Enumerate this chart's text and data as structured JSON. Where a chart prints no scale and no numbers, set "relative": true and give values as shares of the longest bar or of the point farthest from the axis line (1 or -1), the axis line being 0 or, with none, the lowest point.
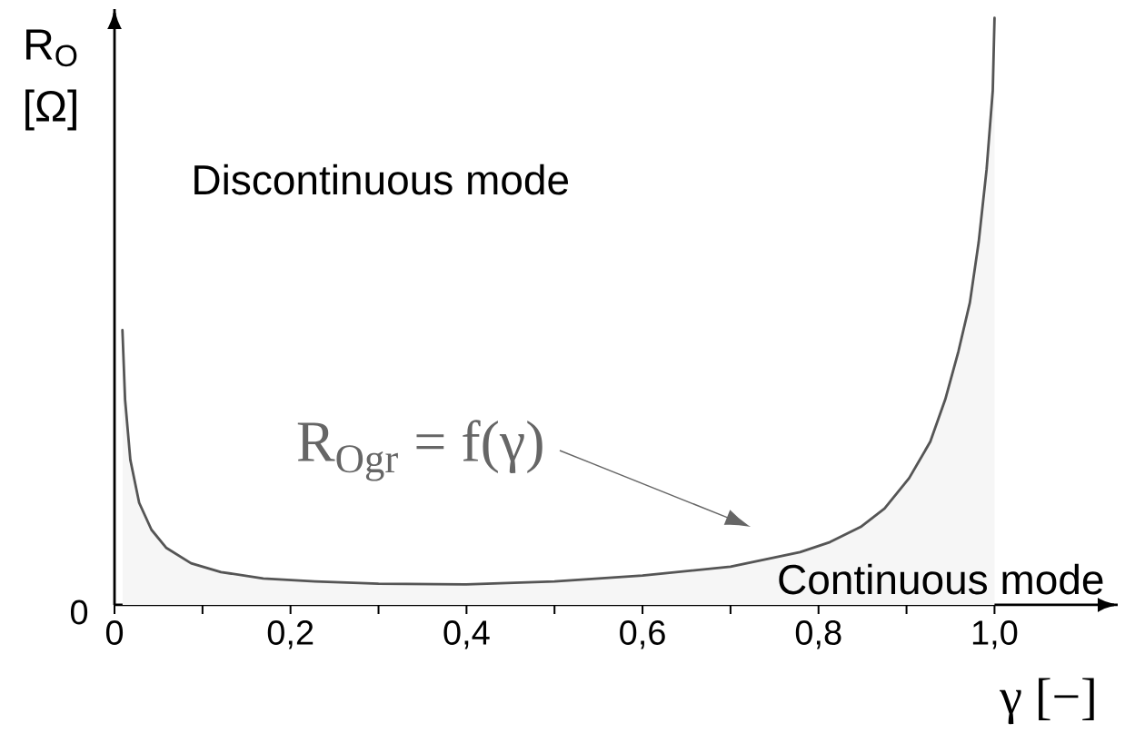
{
  "chart_data": {
    "type": "area",
    "relative": true,
    "color": "#555555",
    "xlabel": "γ [−]",
    "ylabel": "R$_{O}$ [Ω]",
    "x": [
      0.009,
      0.012,
      0.018,
      0.028,
      0.042,
      0.059,
      0.087,
      0.121,
      0.169,
      0.228,
      0.3,
      0.4,
      0.5,
      0.6,
      0.7,
      0.779,
      0.813,
      0.848,
      0.875,
      0.903,
      0.927,
      0.944,
      0.959,
      0.972,
      0.982,
      0.991,
      0.998,
      1.0
    ],
    "values": [
      0.468,
      0.35,
      0.247,
      0.174,
      0.128,
      0.097,
      0.071,
      0.056,
      0.045,
      0.04,
      0.036,
      0.035,
      0.04,
      0.05,
      0.065,
      0.09,
      0.107,
      0.133,
      0.164,
      0.216,
      0.278,
      0.35,
      0.432,
      0.515,
      0.618,
      0.742,
      0.876,
      1
    ],
    "xlim": [
      0,
      1.14
    ],
    "xticks": [
      0,
      {
        "value": 0.1,
        "label": null
      },
      {
        "value": 0.2,
        "label": "0,2"
      },
      {
        "value": 0.3,
        "label": null
      },
      {
        "value": 0.4,
        "label": "0,4"
      },
      {
        "value": 0.5,
        "label": null
      },
      {
        "value": 0.6,
        "label": "0,6"
      },
      {
        "value": 0.7,
        "label": null
      },
      {
        "value": 0.8,
        "label": "0,8"
      },
      {
        "value": 0.9,
        "label": null
      },
      {
        "value": 1.0,
        "label": "1,0"
      }
    ],
    "annotations": [
      "Discontinuous mode",
      "R$_{Ogr}$ = f(γ)",
      "Continuous mode",
      "0"
    ]
  }
}
